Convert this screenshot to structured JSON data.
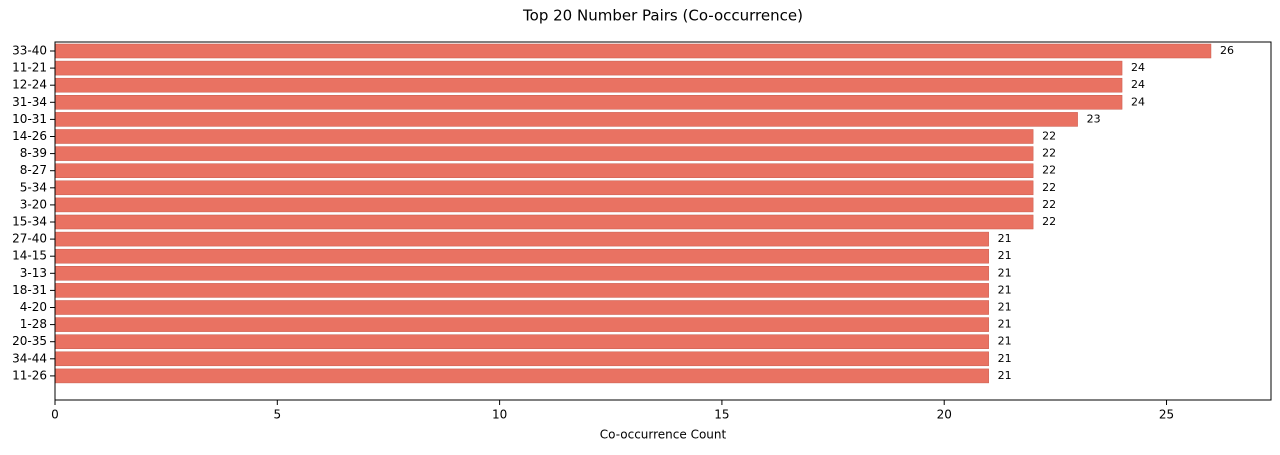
{
  "chart_data": {
    "type": "barh",
    "title": "Top 20 Number Pairs (Co-occurrence)",
    "xlabel": "Co-occurrence Count",
    "categories": [
      "33-40",
      "11-21",
      "12-24",
      "31-34",
      "10-31",
      "14-26",
      "8-39",
      "8-27",
      "5-34",
      "3-20",
      "15-34",
      "27-40",
      "14-15",
      "3-13",
      "18-31",
      "4-20",
      "1-28",
      "20-35",
      "34-44",
      "11-26"
    ],
    "values": [
      26,
      24,
      24,
      24,
      23,
      22,
      22,
      22,
      22,
      22,
      22,
      21,
      21,
      21,
      21,
      21,
      21,
      21,
      21,
      21
    ],
    "color": "#e97262",
    "xlim": [
      0,
      27.35
    ],
    "xticks": [
      0,
      5,
      10,
      15,
      20,
      25
    ],
    "grid": false
  }
}
